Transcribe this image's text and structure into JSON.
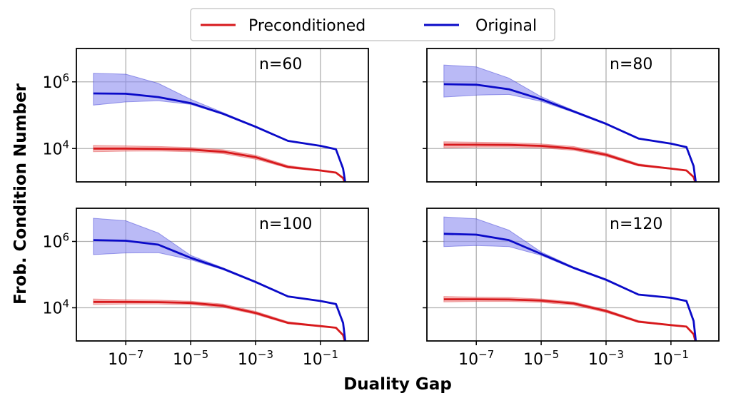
{
  "figure": {
    "xlabel": "Duality Gap",
    "ylabel": "Frob. Condition Number",
    "legend": {
      "placement": "top-center",
      "entries": [
        {
          "label": "Preconditioned",
          "color": "#d7191c"
        },
        {
          "label": "Original",
          "color": "#0a0ac8"
        }
      ]
    }
  },
  "colors": {
    "preconditioned_line": "#d7191c",
    "preconditioned_band": "#f08c8c",
    "original_line": "#0a0ac8",
    "original_band": "#8c8cf0",
    "grid": "#b0b0b0"
  },
  "chart_data": [
    {
      "type": "line",
      "panel_label": "n=60",
      "xscale": "log",
      "yscale": "log",
      "xlim": [
        3e-09,
        3
      ],
      "ylim": [
        1000,
        10000000
      ],
      "xticks": [
        {
          "base": "10",
          "exp": "−7",
          "value": 1e-07
        },
        {
          "base": "10",
          "exp": "−5",
          "value": 1e-05
        },
        {
          "base": "10",
          "exp": "−3",
          "value": 0.001
        },
        {
          "base": "10",
          "exp": "−1",
          "value": 0.1
        }
      ],
      "yticks": [
        {
          "base": "10",
          "exp": "4",
          "value": 10000
        },
        {
          "base": "10",
          "exp": "6",
          "value": 1000000
        }
      ],
      "grid": true,
      "series": [
        {
          "name": "Preconditioned",
          "color": "#d7191c",
          "x": [
            1e-08,
            1e-07,
            1e-06,
            1e-05,
            0.0001,
            0.001,
            0.01,
            0.1,
            0.3,
            0.5,
            0.6
          ],
          "y": [
            10000,
            10000,
            9800,
            9300,
            8000,
            5500,
            2800,
            2200,
            1900,
            1300,
            800
          ],
          "band_low": [
            8000,
            8300,
            8400,
            8000,
            7000,
            4800,
            2600,
            2100,
            1850,
            1250,
            800
          ],
          "band_high": [
            12500,
            12000,
            11500,
            10800,
            9200,
            6300,
            3100,
            2300,
            1950,
            1350,
            800
          ]
        },
        {
          "name": "Original",
          "color": "#0a0ac8",
          "x": [
            1e-08,
            1e-07,
            1e-06,
            1e-05,
            0.0001,
            0.001,
            0.01,
            0.1,
            0.3,
            0.5,
            0.6
          ],
          "y": [
            450000,
            440000,
            350000,
            230000,
            110000,
            45000,
            17000,
            12000,
            9500,
            2500,
            800
          ],
          "band_low": [
            200000,
            250000,
            270000,
            210000,
            105000,
            43000,
            16500,
            11800,
            9400,
            2500,
            800
          ],
          "band_high": [
            1800000,
            1700000,
            900000,
            300000,
            120000,
            47000,
            17500,
            12200,
            9600,
            2500,
            800
          ]
        }
      ]
    },
    {
      "type": "line",
      "panel_label": "n=80",
      "xscale": "log",
      "yscale": "log",
      "xlim": [
        3e-09,
        3
      ],
      "ylim": [
        1000,
        10000000
      ],
      "xticks": [
        {
          "base": "10",
          "exp": "−7",
          "value": 1e-07
        },
        {
          "base": "10",
          "exp": "−5",
          "value": 1e-05
        },
        {
          "base": "10",
          "exp": "−3",
          "value": 0.001
        },
        {
          "base": "10",
          "exp": "−1",
          "value": 0.1
        }
      ],
      "yticks": [
        {
          "base": "10",
          "exp": "4",
          "value": 10000
        },
        {
          "base": "10",
          "exp": "6",
          "value": 1000000
        }
      ],
      "grid": true,
      "series": [
        {
          "name": "Preconditioned",
          "color": "#d7191c",
          "x": [
            1e-08,
            1e-07,
            1e-06,
            1e-05,
            0.0001,
            0.001,
            0.01,
            0.1,
            0.3,
            0.5,
            0.6
          ],
          "y": [
            13000,
            13000,
            12800,
            12000,
            10000,
            6500,
            3200,
            2500,
            2200,
            1400,
            800
          ],
          "band_low": [
            10500,
            11000,
            11000,
            10500,
            8800,
            5800,
            3000,
            2400,
            2150,
            1350,
            800
          ],
          "band_high": [
            16000,
            15500,
            15000,
            13800,
            11500,
            7300,
            3500,
            2600,
            2250,
            1450,
            800
          ]
        },
        {
          "name": "Original",
          "color": "#0a0ac8",
          "x": [
            1e-08,
            1e-07,
            1e-06,
            1e-05,
            0.0001,
            0.001,
            0.01,
            0.1,
            0.3,
            0.5,
            0.6
          ],
          "y": [
            850000,
            820000,
            600000,
            300000,
            130000,
            55000,
            20000,
            14000,
            11000,
            3000,
            800
          ],
          "band_low": [
            350000,
            400000,
            420000,
            260000,
            122000,
            52000,
            19500,
            13800,
            10900,
            3000,
            800
          ],
          "band_high": [
            3200000,
            2800000,
            1300000,
            360000,
            140000,
            58000,
            20500,
            14200,
            11100,
            3000,
            800
          ]
        }
      ]
    },
    {
      "type": "line",
      "panel_label": "n=100",
      "xscale": "log",
      "yscale": "log",
      "xlim": [
        3e-09,
        3
      ],
      "ylim": [
        1000,
        10000000
      ],
      "xticks": [
        {
          "base": "10",
          "exp": "−7",
          "value": 1e-07
        },
        {
          "base": "10",
          "exp": "−5",
          "value": 1e-05
        },
        {
          "base": "10",
          "exp": "−3",
          "value": 0.001
        },
        {
          "base": "10",
          "exp": "−1",
          "value": 0.1
        }
      ],
      "yticks": [
        {
          "base": "10",
          "exp": "4",
          "value": 10000
        },
        {
          "base": "10",
          "exp": "6",
          "value": 1000000
        }
      ],
      "grid": true,
      "series": [
        {
          "name": "Preconditioned",
          "color": "#d7191c",
          "x": [
            1e-08,
            1e-07,
            1e-06,
            1e-05,
            0.0001,
            0.001,
            0.01,
            0.1,
            0.3,
            0.5,
            0.6
          ],
          "y": [
            15000,
            15000,
            14800,
            14000,
            11500,
            7000,
            3500,
            2800,
            2500,
            1500,
            800
          ],
          "band_low": [
            12500,
            13000,
            13000,
            12300,
            10300,
            6300,
            3300,
            2700,
            2450,
            1450,
            800
          ],
          "band_high": [
            18500,
            17500,
            17000,
            15800,
            13000,
            7800,
            3800,
            2900,
            2550,
            1550,
            800
          ]
        },
        {
          "name": "Original",
          "color": "#0a0ac8",
          "x": [
            1e-08,
            1e-07,
            1e-06,
            1e-05,
            0.0001,
            0.001,
            0.01,
            0.1,
            0.3,
            0.5,
            0.6
          ],
          "y": [
            1100000,
            1050000,
            800000,
            320000,
            150000,
            60000,
            22000,
            16000,
            13000,
            3500,
            800
          ],
          "band_low": [
            400000,
            450000,
            460000,
            280000,
            140000,
            57000,
            21500,
            15800,
            12900,
            3500,
            800
          ],
          "band_high": [
            5000000,
            4200000,
            1800000,
            380000,
            160000,
            63000,
            22500,
            16200,
            13100,
            3500,
            800
          ]
        }
      ]
    },
    {
      "type": "line",
      "panel_label": "n=120",
      "xscale": "log",
      "yscale": "log",
      "xlim": [
        3e-09,
        3
      ],
      "ylim": [
        1000,
        10000000
      ],
      "xticks": [
        {
          "base": "10",
          "exp": "−7",
          "value": 1e-07
        },
        {
          "base": "10",
          "exp": "−5",
          "value": 1e-05
        },
        {
          "base": "10",
          "exp": "−3",
          "value": 0.001
        },
        {
          "base": "10",
          "exp": "−1",
          "value": 0.1
        }
      ],
      "yticks": [
        {
          "base": "10",
          "exp": "4",
          "value": 10000
        },
        {
          "base": "10",
          "exp": "6",
          "value": 1000000
        }
      ],
      "grid": true,
      "series": [
        {
          "name": "Preconditioned",
          "color": "#d7191c",
          "x": [
            1e-08,
            1e-07,
            1e-06,
            1e-05,
            0.0001,
            0.001,
            0.01,
            0.1,
            0.3,
            0.5,
            0.6
          ],
          "y": [
            18000,
            18000,
            17800,
            16500,
            13500,
            8000,
            3800,
            3000,
            2700,
            1600,
            800
          ],
          "band_low": [
            15000,
            15500,
            15500,
            14500,
            12000,
            7200,
            3600,
            2900,
            2650,
            1550,
            800
          ],
          "band_high": [
            22000,
            21000,
            20500,
            18500,
            15000,
            8800,
            4100,
            3100,
            2750,
            1650,
            800
          ]
        },
        {
          "name": "Original",
          "color": "#0a0ac8",
          "x": [
            1e-08,
            1e-07,
            1e-06,
            1e-05,
            0.0001,
            0.001,
            0.01,
            0.1,
            0.3,
            0.5,
            0.6
          ],
          "y": [
            1700000,
            1600000,
            1100000,
            420000,
            160000,
            70000,
            25000,
            20000,
            16000,
            4000,
            800
          ],
          "band_low": [
            700000,
            750000,
            700000,
            380000,
            150000,
            66000,
            24500,
            19800,
            15900,
            4000,
            800
          ],
          "band_high": [
            5500000,
            4800000,
            2200000,
            480000,
            170000,
            74000,
            25500,
            20200,
            16100,
            4000,
            800
          ]
        }
      ]
    }
  ]
}
